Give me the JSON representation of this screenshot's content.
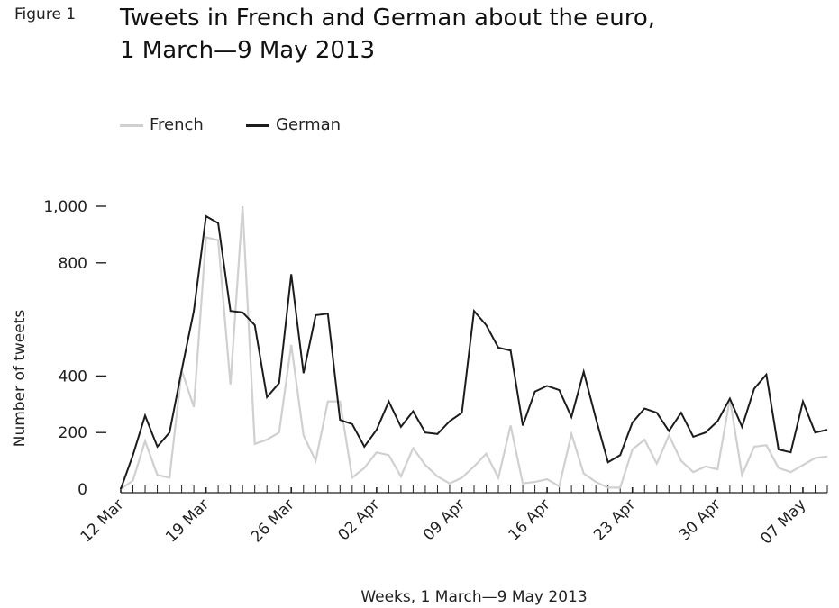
{
  "figure": {
    "label": "Figure 1"
  },
  "title_line1": "Tweets in French and German about the euro,",
  "title_line2": "1 March—9 May 2013",
  "colors": {
    "french": "#d0d0d0",
    "german": "#1c1c1c",
    "axis": "#222222"
  },
  "chart_data": {
    "type": "line",
    "title": "Tweets in French and German about the euro, 1 March—9 May 2013",
    "xlabel": "Weeks, 1 March—9 May 2013",
    "ylabel": "Number of tweets",
    "ylim": [
      0,
      1000
    ],
    "y_ticks": [
      0,
      200,
      400,
      800,
      1000
    ],
    "y_tick_labels": [
      "0",
      "200",
      "400",
      "800",
      "1,000"
    ],
    "x_ticks": [
      "12 Mar",
      "19 Mar",
      "26 Mar",
      "02 Apr",
      "09 Apr",
      "16 Apr",
      "23 Apr",
      "30 Apr",
      "07 May"
    ],
    "x_start": "12 Mar",
    "x_end": "9 May",
    "legend_position": "top-left",
    "grid": false,
    "categories": [
      "12 Mar",
      "13 Mar",
      "14 Mar",
      "15 Mar",
      "16 Mar",
      "17 Mar",
      "18 Mar",
      "19 Mar",
      "20 Mar",
      "21 Mar",
      "22 Mar",
      "23 Mar",
      "24 Mar",
      "25 Mar",
      "26 Mar",
      "27 Mar",
      "28 Mar",
      "29 Mar",
      "30 Mar",
      "31 Mar",
      "01 Apr",
      "02 Apr",
      "03 Apr",
      "04 Apr",
      "05 Apr",
      "06 Apr",
      "07 Apr",
      "08 Apr",
      "09 Apr",
      "10 Apr",
      "11 Apr",
      "12 Apr",
      "13 Apr",
      "14 Apr",
      "15 Apr",
      "16 Apr",
      "17 Apr",
      "18 Apr",
      "19 Apr",
      "20 Apr",
      "21 Apr",
      "22 Apr",
      "23 Apr",
      "24 Apr",
      "25 Apr",
      "26 Apr",
      "27 Apr",
      "28 Apr",
      "29 Apr",
      "30 Apr",
      "01 May",
      "02 May",
      "03 May",
      "04 May",
      "05 May",
      "06 May",
      "07 May",
      "08 May",
      "09 May"
    ],
    "series": [
      {
        "name": "French",
        "values": [
          0,
          30,
          170,
          50,
          40,
          420,
          290,
          890,
          880,
          370,
          1000,
          160,
          175,
          200,
          510,
          190,
          100,
          310,
          310,
          40,
          75,
          130,
          120,
          45,
          145,
          85,
          45,
          20,
          40,
          80,
          125,
          40,
          225,
          20,
          25,
          35,
          10,
          195,
          55,
          25,
          5,
          5,
          140,
          175,
          90,
          190,
          100,
          60,
          80,
          70,
          320,
          50,
          150,
          155,
          75,
          60,
          85,
          110,
          115
        ]
      },
      {
        "name": "German",
        "values": [
          0,
          120,
          260,
          150,
          200,
          420,
          630,
          965,
          940,
          630,
          625,
          580,
          325,
          375,
          760,
          410,
          615,
          620,
          245,
          230,
          150,
          210,
          310,
          220,
          275,
          200,
          195,
          240,
          270,
          630,
          580,
          500,
          490,
          225,
          345,
          365,
          350,
          255,
          415,
          250,
          95,
          120,
          235,
          285,
          270,
          205,
          270,
          185,
          200,
          240,
          320,
          220,
          355,
          405,
          140,
          130,
          310,
          200,
          210
        ]
      }
    ]
  }
}
